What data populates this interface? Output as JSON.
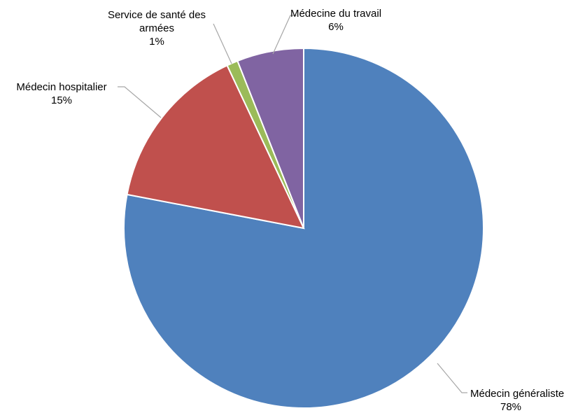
{
  "chart_data": {
    "type": "pie",
    "title": "",
    "start_angle_deg": 0,
    "direction": "clockwise",
    "slices": [
      {
        "label": "Médecin généraliste",
        "label_lines": [
          "Médecin généraliste"
        ],
        "value": 78,
        "value_text": "78%",
        "color": "#4f81bd"
      },
      {
        "label": "Médecin hospitalier",
        "label_lines": [
          "Médecin hospitalier"
        ],
        "value": 15,
        "value_text": "15%",
        "color": "#c0504d"
      },
      {
        "label": "Service de santé des armées",
        "label_lines": [
          "Service de santé des",
          "armées"
        ],
        "value": 1,
        "value_text": "1%",
        "color": "#9bbb59"
      },
      {
        "label": "Médecine du travail",
        "label_lines": [
          "Médecine du travail"
        ],
        "value": 6,
        "value_text": "6%",
        "color": "#8064a2"
      }
    ],
    "legend": "none",
    "data_labels": "outside with leader lines"
  }
}
